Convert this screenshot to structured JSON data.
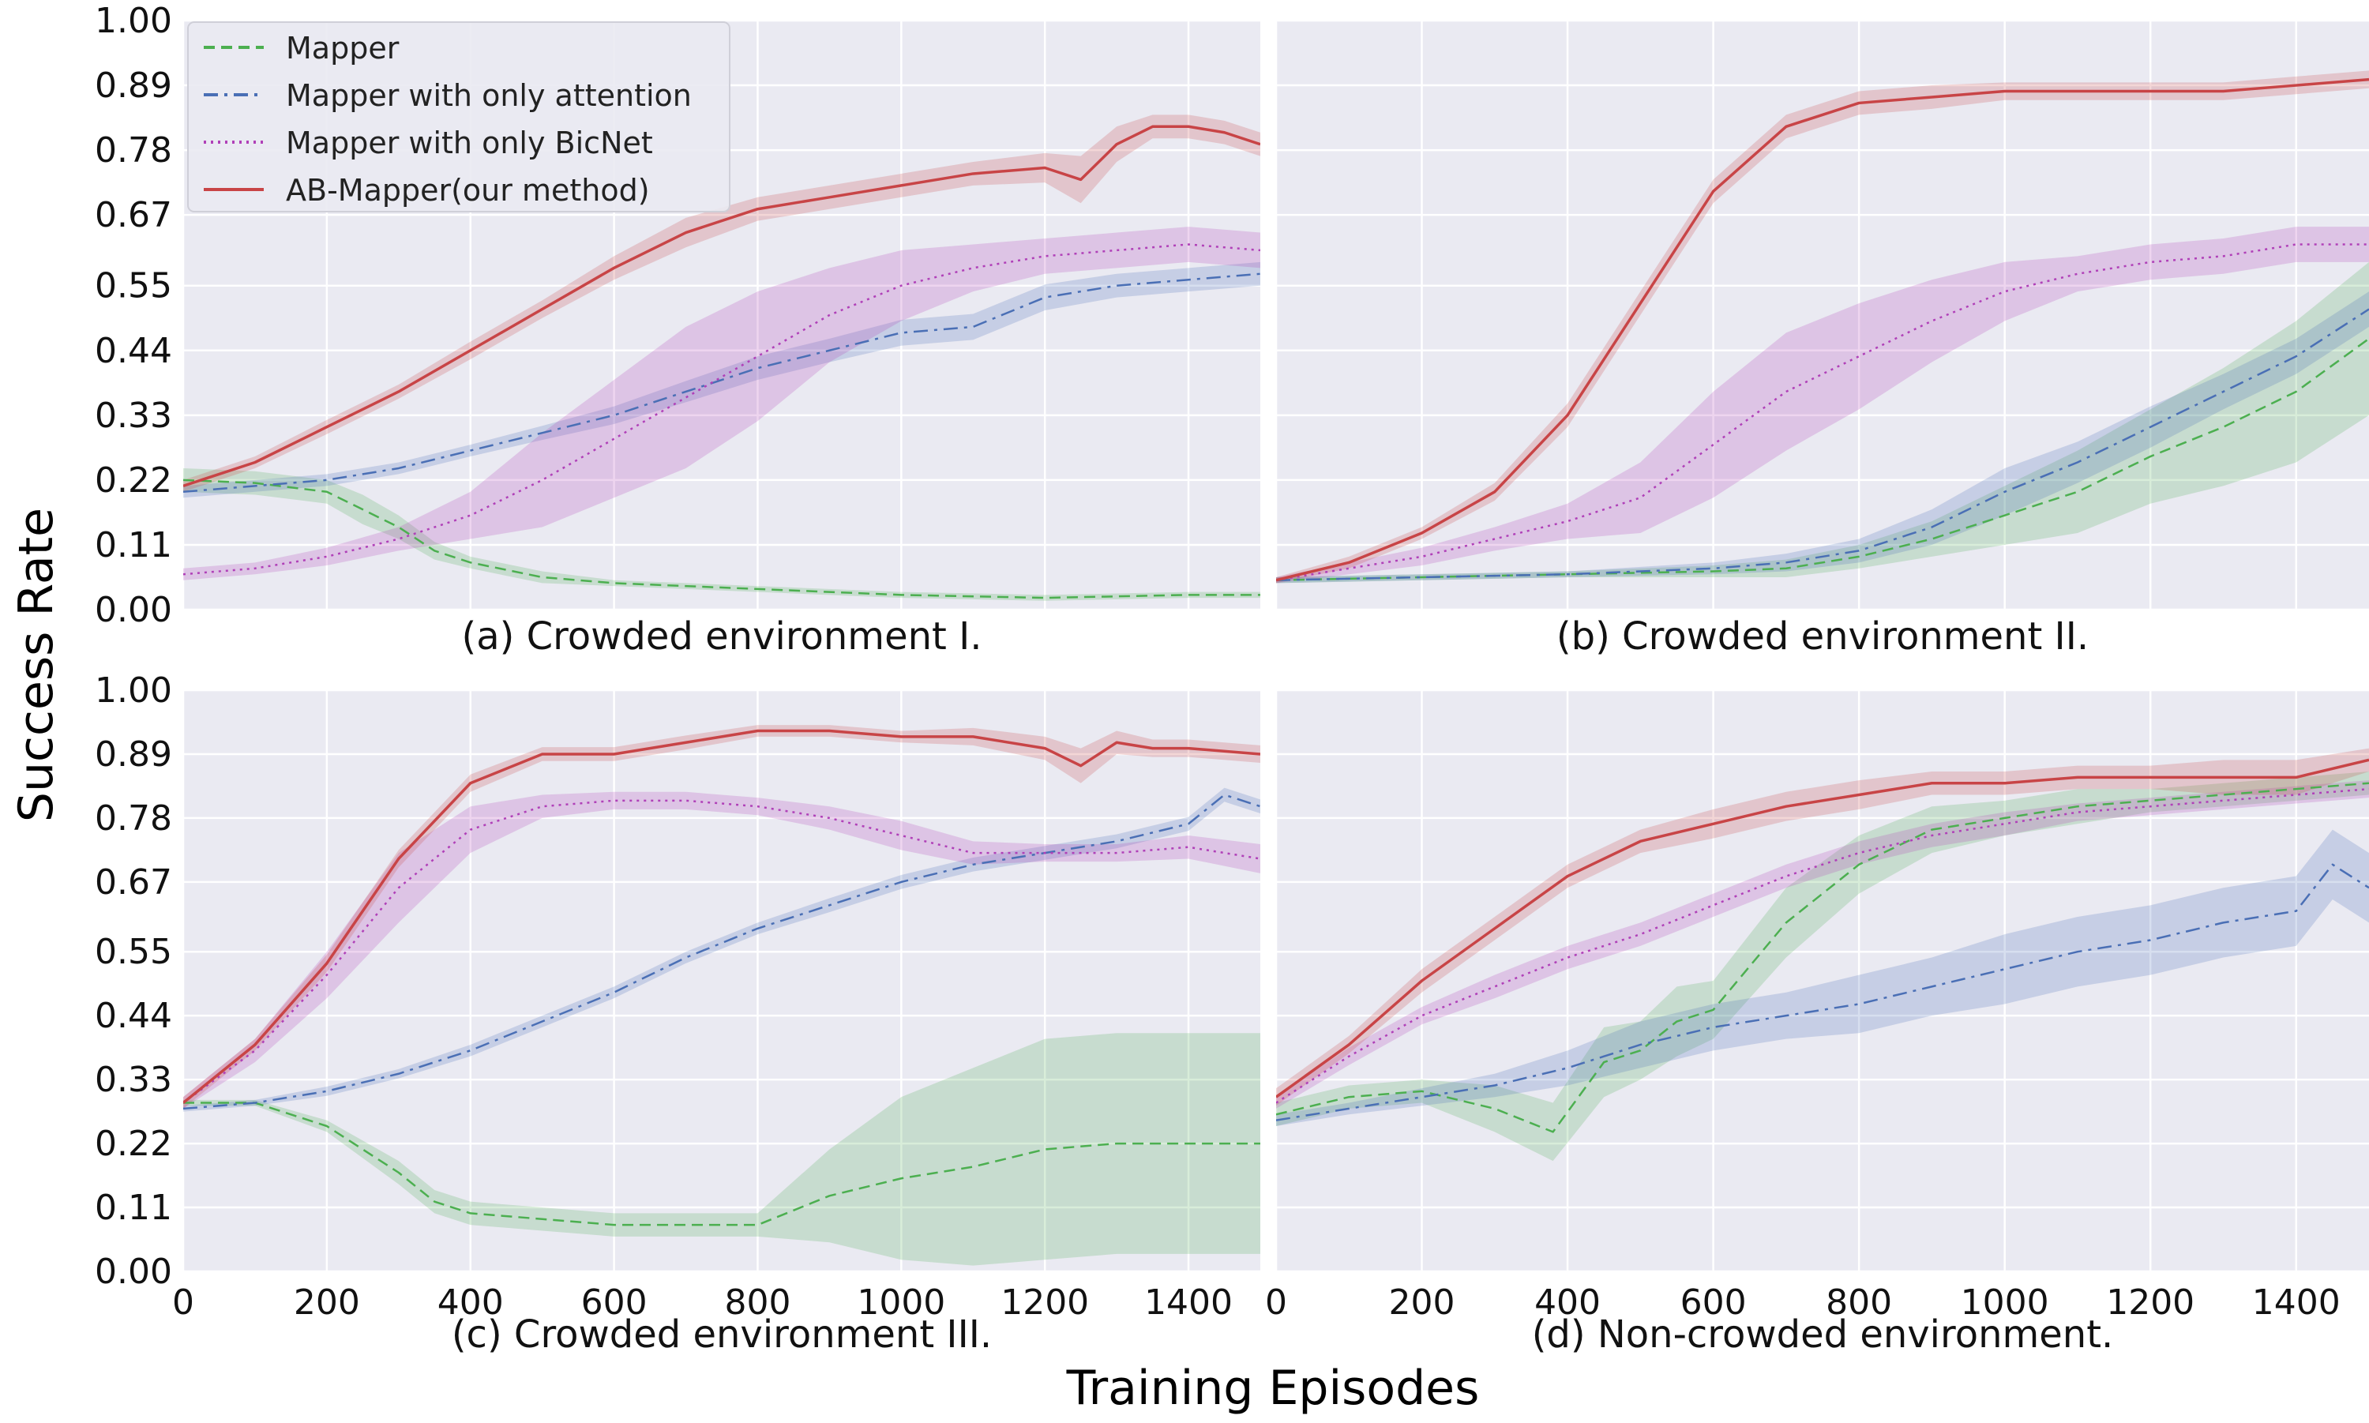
{
  "figure": {
    "ylabel": "Success Rate",
    "xlabel": "Training Episodes"
  },
  "legend": [
    {
      "label": "Mapper",
      "color": "#4caf50",
      "dash": "dashed"
    },
    {
      "label": "Mapper with only attention",
      "color": "#4a6fb5",
      "dash": "dashdot"
    },
    {
      "label": "Mapper with only BicNet",
      "color": "#b040b8",
      "dash": "dotted"
    },
    {
      "label": "AB-Mapper(our method)",
      "color": "#c84446",
      "dash": "solid"
    }
  ],
  "chart_data": [
    {
      "type": "line",
      "title": "(a) Crowded environment I.",
      "xlim": [
        0,
        1500
      ],
      "ylim": [
        0,
        1
      ],
      "x_ticks": [
        "0",
        "200",
        "400",
        "600",
        "800",
        "1000",
        "1200",
        "1400"
      ],
      "y_ticks": [
        "0.00",
        "0.11",
        "0.22",
        "0.33",
        "0.44",
        "0.55",
        "0.67",
        "0.78",
        "0.89",
        "1.00"
      ],
      "series": [
        {
          "name": "Mapper",
          "x": [
            0,
            100,
            200,
            250,
            300,
            350,
            400,
            500,
            600,
            800,
            1000,
            1200,
            1400,
            1500
          ],
          "y": [
            0.22,
            0.215,
            0.2,
            0.17,
            0.14,
            0.1,
            0.08,
            0.055,
            0.045,
            0.035,
            0.025,
            0.02,
            0.025,
            0.025
          ],
          "band": [
            0.02,
            0.02,
            0.02,
            0.025,
            0.02,
            0.015,
            0.01,
            0.01,
            0.005,
            0.005,
            0.005,
            0.005,
            0.005,
            0.005
          ]
        },
        {
          "name": "Mapper with only attention",
          "x": [
            0,
            100,
            200,
            300,
            400,
            500,
            600,
            700,
            800,
            900,
            1000,
            1100,
            1200,
            1300,
            1400,
            1500
          ],
          "y": [
            0.2,
            0.21,
            0.22,
            0.24,
            0.27,
            0.3,
            0.33,
            0.37,
            0.41,
            0.44,
            0.47,
            0.48,
            0.53,
            0.55,
            0.56,
            0.57
          ],
          "band": [
            0.01,
            0.01,
            0.01,
            0.01,
            0.01,
            0.012,
            0.015,
            0.018,
            0.02,
            0.02,
            0.022,
            0.022,
            0.022,
            0.02,
            0.02,
            0.02
          ]
        },
        {
          "name": "Mapper with only BicNet",
          "x": [
            0,
            100,
            200,
            300,
            400,
            500,
            600,
            700,
            800,
            900,
            1000,
            1100,
            1200,
            1300,
            1400,
            1500
          ],
          "y": [
            0.06,
            0.07,
            0.09,
            0.12,
            0.16,
            0.22,
            0.29,
            0.36,
            0.43,
            0.5,
            0.55,
            0.58,
            0.6,
            0.61,
            0.62,
            0.61
          ],
          "band": [
            0.01,
            0.01,
            0.015,
            0.02,
            0.04,
            0.08,
            0.1,
            0.12,
            0.11,
            0.08,
            0.06,
            0.04,
            0.03,
            0.03,
            0.03,
            0.03
          ]
        },
        {
          "name": "AB-Mapper(our method)",
          "x": [
            0,
            100,
            200,
            300,
            400,
            500,
            600,
            700,
            800,
            900,
            1000,
            1100,
            1200,
            1250,
            1300,
            1350,
            1400,
            1450,
            1500
          ],
          "y": [
            0.21,
            0.25,
            0.31,
            0.37,
            0.44,
            0.51,
            0.58,
            0.64,
            0.68,
            0.7,
            0.72,
            0.74,
            0.75,
            0.73,
            0.79,
            0.82,
            0.82,
            0.81,
            0.79
          ],
          "band": [
            0.01,
            0.01,
            0.012,
            0.012,
            0.015,
            0.015,
            0.02,
            0.025,
            0.02,
            0.02,
            0.02,
            0.02,
            0.025,
            0.04,
            0.03,
            0.02,
            0.02,
            0.02,
            0.02
          ]
        }
      ]
    },
    {
      "type": "line",
      "title": "(b) Crowded environment II.",
      "xlim": [
        0,
        1500
      ],
      "ylim": [
        0,
        1
      ],
      "x_ticks": [
        "0",
        "200",
        "400",
        "600",
        "800",
        "1000",
        "1200",
        "1400"
      ],
      "y_ticks": [
        "0.00",
        "0.11",
        "0.22",
        "0.33",
        "0.44",
        "0.55",
        "0.67",
        "0.78",
        "0.89",
        "1.00"
      ],
      "series": [
        {
          "name": "Mapper",
          "x": [
            0,
            200,
            400,
            600,
            700,
            800,
            900,
            1000,
            1100,
            1200,
            1300,
            1400,
            1500
          ],
          "y": [
            0.05,
            0.055,
            0.06,
            0.065,
            0.07,
            0.09,
            0.12,
            0.16,
            0.2,
            0.26,
            0.31,
            0.37,
            0.46
          ],
          "band": [
            0.005,
            0.005,
            0.005,
            0.01,
            0.015,
            0.02,
            0.03,
            0.05,
            0.07,
            0.08,
            0.1,
            0.12,
            0.13
          ]
        },
        {
          "name": "Mapper with only attention",
          "x": [
            0,
            200,
            400,
            600,
            700,
            800,
            900,
            1000,
            1100,
            1200,
            1300,
            1400,
            1500
          ],
          "y": [
            0.05,
            0.055,
            0.06,
            0.07,
            0.08,
            0.1,
            0.14,
            0.2,
            0.25,
            0.31,
            0.37,
            0.43,
            0.51
          ],
          "band": [
            0.005,
            0.005,
            0.005,
            0.01,
            0.015,
            0.02,
            0.03,
            0.04,
            0.035,
            0.035,
            0.03,
            0.03,
            0.03
          ]
        },
        {
          "name": "Mapper with only BicNet",
          "x": [
            0,
            100,
            200,
            300,
            400,
            500,
            600,
            700,
            800,
            900,
            1000,
            1100,
            1200,
            1300,
            1400,
            1500
          ],
          "y": [
            0.05,
            0.07,
            0.09,
            0.12,
            0.15,
            0.19,
            0.28,
            0.37,
            0.43,
            0.49,
            0.54,
            0.57,
            0.59,
            0.6,
            0.62,
            0.62
          ],
          "band": [
            0.005,
            0.01,
            0.015,
            0.02,
            0.03,
            0.06,
            0.09,
            0.1,
            0.09,
            0.07,
            0.05,
            0.03,
            0.03,
            0.03,
            0.03,
            0.03
          ]
        },
        {
          "name": "AB-Mapper(our method)",
          "x": [
            0,
            100,
            200,
            300,
            400,
            500,
            600,
            700,
            800,
            900,
            1000,
            1100,
            1200,
            1300,
            1400,
            1500
          ],
          "y": [
            0.05,
            0.08,
            0.13,
            0.2,
            0.33,
            0.52,
            0.71,
            0.82,
            0.86,
            0.87,
            0.88,
            0.88,
            0.88,
            0.88,
            0.89,
            0.9
          ],
          "band": [
            0.005,
            0.01,
            0.01,
            0.015,
            0.02,
            0.02,
            0.02,
            0.02,
            0.02,
            0.02,
            0.015,
            0.015,
            0.015,
            0.015,
            0.015,
            0.015
          ]
        }
      ]
    },
    {
      "type": "line",
      "title": "(c) Crowded environment III.",
      "xlim": [
        0,
        1500
      ],
      "ylim": [
        0,
        1
      ],
      "x_ticks": [
        "0",
        "200",
        "400",
        "600",
        "800",
        "1000",
        "1200",
        "1400"
      ],
      "y_ticks": [
        "0.00",
        "0.11",
        "0.22",
        "0.33",
        "0.44",
        "0.55",
        "0.67",
        "0.78",
        "0.89",
        "1.00"
      ],
      "series": [
        {
          "name": "Mapper",
          "x": [
            0,
            100,
            200,
            300,
            350,
            400,
            500,
            600,
            700,
            800,
            900,
            1000,
            1100,
            1200,
            1300,
            1400,
            1500
          ],
          "y": [
            0.29,
            0.29,
            0.25,
            0.17,
            0.12,
            0.1,
            0.09,
            0.08,
            0.08,
            0.08,
            0.13,
            0.16,
            0.18,
            0.21,
            0.22,
            0.22,
            0.22
          ],
          "band": [
            0.005,
            0.005,
            0.01,
            0.02,
            0.02,
            0.02,
            0.02,
            0.02,
            0.02,
            0.02,
            0.08,
            0.14,
            0.17,
            0.19,
            0.19,
            0.19,
            0.19
          ]
        },
        {
          "name": "Mapper with only attention",
          "x": [
            0,
            100,
            200,
            300,
            400,
            500,
            600,
            700,
            800,
            900,
            1000,
            1100,
            1200,
            1300,
            1400,
            1450,
            1500
          ],
          "y": [
            0.28,
            0.29,
            0.31,
            0.34,
            0.38,
            0.43,
            0.48,
            0.54,
            0.59,
            0.63,
            0.67,
            0.7,
            0.72,
            0.74,
            0.77,
            0.82,
            0.8
          ],
          "band": [
            0.005,
            0.005,
            0.008,
            0.008,
            0.01,
            0.01,
            0.01,
            0.01,
            0.01,
            0.012,
            0.012,
            0.012,
            0.012,
            0.012,
            0.012,
            0.012,
            0.012
          ]
        },
        {
          "name": "Mapper with only BicNet",
          "x": [
            0,
            100,
            200,
            300,
            400,
            500,
            600,
            700,
            800,
            900,
            1000,
            1100,
            1200,
            1300,
            1400,
            1500
          ],
          "y": [
            0.29,
            0.38,
            0.51,
            0.66,
            0.76,
            0.8,
            0.81,
            0.81,
            0.8,
            0.78,
            0.75,
            0.72,
            0.72,
            0.72,
            0.73,
            0.71
          ],
          "band": [
            0.01,
            0.02,
            0.04,
            0.06,
            0.04,
            0.02,
            0.015,
            0.015,
            0.015,
            0.02,
            0.025,
            0.02,
            0.015,
            0.015,
            0.02,
            0.025
          ]
        },
        {
          "name": "AB-Mapper(our method)",
          "x": [
            0,
            100,
            200,
            300,
            400,
            500,
            600,
            700,
            800,
            900,
            1000,
            1100,
            1200,
            1250,
            1300,
            1350,
            1400,
            1500
          ],
          "y": [
            0.29,
            0.39,
            0.53,
            0.71,
            0.84,
            0.89,
            0.89,
            0.91,
            0.93,
            0.93,
            0.92,
            0.92,
            0.9,
            0.87,
            0.91,
            0.9,
            0.9,
            0.89
          ],
          "band": [
            0.01,
            0.01,
            0.015,
            0.015,
            0.015,
            0.012,
            0.012,
            0.012,
            0.01,
            0.01,
            0.01,
            0.015,
            0.02,
            0.03,
            0.02,
            0.015,
            0.015,
            0.015
          ]
        }
      ]
    },
    {
      "type": "line",
      "title": "(d) Non-crowded environment.",
      "xlim": [
        0,
        1500
      ],
      "ylim": [
        0,
        1
      ],
      "x_ticks": [
        "0",
        "200",
        "400",
        "600",
        "800",
        "1000",
        "1200",
        "1400"
      ],
      "y_ticks": [
        "0.00",
        "0.11",
        "0.22",
        "0.33",
        "0.44",
        "0.55",
        "0.67",
        "0.78",
        "0.89",
        "1.00"
      ],
      "series": [
        {
          "name": "Mapper",
          "x": [
            0,
            100,
            200,
            300,
            380,
            450,
            500,
            550,
            600,
            700,
            800,
            900,
            1000,
            1100,
            1200,
            1300,
            1400,
            1500
          ],
          "y": [
            0.27,
            0.3,
            0.31,
            0.28,
            0.24,
            0.36,
            0.38,
            0.43,
            0.45,
            0.6,
            0.7,
            0.76,
            0.78,
            0.8,
            0.81,
            0.82,
            0.83,
            0.84
          ],
          "band": [
            0.02,
            0.02,
            0.02,
            0.04,
            0.05,
            0.06,
            0.05,
            0.06,
            0.05,
            0.06,
            0.05,
            0.04,
            0.03,
            0.03,
            0.02,
            0.02,
            0.02,
            0.02
          ]
        },
        {
          "name": "Mapper with only attention",
          "x": [
            0,
            100,
            200,
            300,
            400,
            500,
            600,
            700,
            800,
            900,
            1000,
            1100,
            1200,
            1300,
            1400,
            1450,
            1500
          ],
          "y": [
            0.26,
            0.28,
            0.3,
            0.32,
            0.35,
            0.39,
            0.42,
            0.44,
            0.46,
            0.49,
            0.52,
            0.55,
            0.57,
            0.6,
            0.62,
            0.7,
            0.66
          ],
          "band": [
            0.01,
            0.01,
            0.015,
            0.02,
            0.03,
            0.04,
            0.04,
            0.04,
            0.05,
            0.05,
            0.06,
            0.06,
            0.06,
            0.06,
            0.06,
            0.06,
            0.06
          ]
        },
        {
          "name": "Mapper with only BicNet",
          "x": [
            0,
            100,
            200,
            300,
            400,
            500,
            600,
            700,
            800,
            900,
            1000,
            1100,
            1200,
            1300,
            1400,
            1500
          ],
          "y": [
            0.29,
            0.37,
            0.44,
            0.49,
            0.54,
            0.58,
            0.63,
            0.68,
            0.72,
            0.75,
            0.77,
            0.79,
            0.8,
            0.81,
            0.82,
            0.83
          ],
          "band": [
            0.01,
            0.015,
            0.015,
            0.02,
            0.02,
            0.02,
            0.02,
            0.02,
            0.02,
            0.02,
            0.02,
            0.015,
            0.015,
            0.015,
            0.015,
            0.015
          ]
        },
        {
          "name": "AB-Mapper(our method)",
          "x": [
            0,
            100,
            200,
            300,
            400,
            500,
            600,
            700,
            800,
            900,
            1000,
            1100,
            1200,
            1300,
            1400,
            1500
          ],
          "y": [
            0.3,
            0.39,
            0.5,
            0.59,
            0.68,
            0.74,
            0.77,
            0.8,
            0.82,
            0.84,
            0.84,
            0.85,
            0.85,
            0.85,
            0.85,
            0.88
          ],
          "band": [
            0.015,
            0.015,
            0.02,
            0.02,
            0.02,
            0.02,
            0.025,
            0.025,
            0.025,
            0.02,
            0.02,
            0.02,
            0.02,
            0.03,
            0.03,
            0.02
          ]
        }
      ]
    }
  ]
}
